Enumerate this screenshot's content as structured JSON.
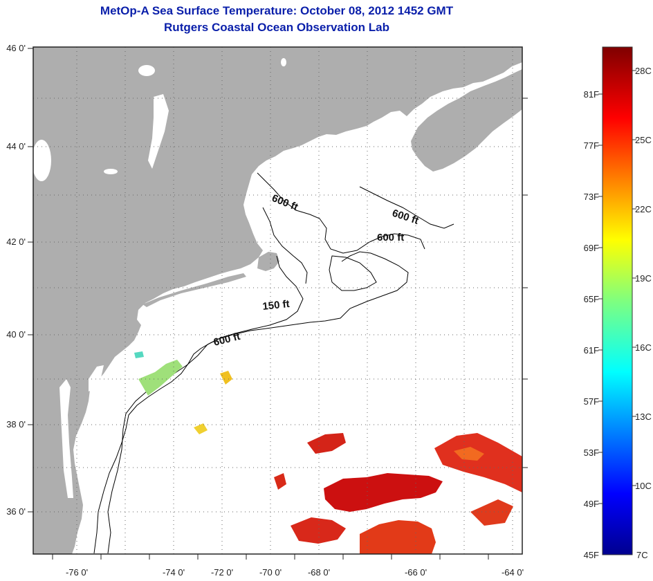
{
  "title": {
    "line1": "MetOp-A Sea Surface Temperature:  October 08, 2012 1452 GMT",
    "line2": "Rutgers Coastal Ocean Observation Lab"
  },
  "map": {
    "lon_ticks": [
      "-76 0'",
      "-74 0'",
      "-72 0'",
      "-70 0'",
      "-68 0'",
      "-66 0'",
      "-64 0'"
    ],
    "lat_ticks": [
      "46 0'",
      "44 0'",
      "42 0'",
      "40 0'",
      "38 0'",
      "36 0'"
    ],
    "contour_labels": [
      "600 ft",
      "600 ft",
      "600 ft",
      "150 ft",
      "600 ft"
    ],
    "colors": {
      "land": "#aeaeae",
      "water": "#ffffff",
      "grid": "#666666",
      "title": "#0a1faa"
    }
  },
  "colorbar": {
    "fahrenheit": [
      "81F",
      "77F",
      "73F",
      "69F",
      "65F",
      "61F",
      "57F",
      "53F",
      "49F",
      "45F"
    ],
    "celsius": [
      "28C",
      "25C",
      "22C",
      "19C",
      "16C",
      "13C",
      "10C",
      "7C"
    ],
    "range_celsius": [
      7,
      29
    ]
  }
}
